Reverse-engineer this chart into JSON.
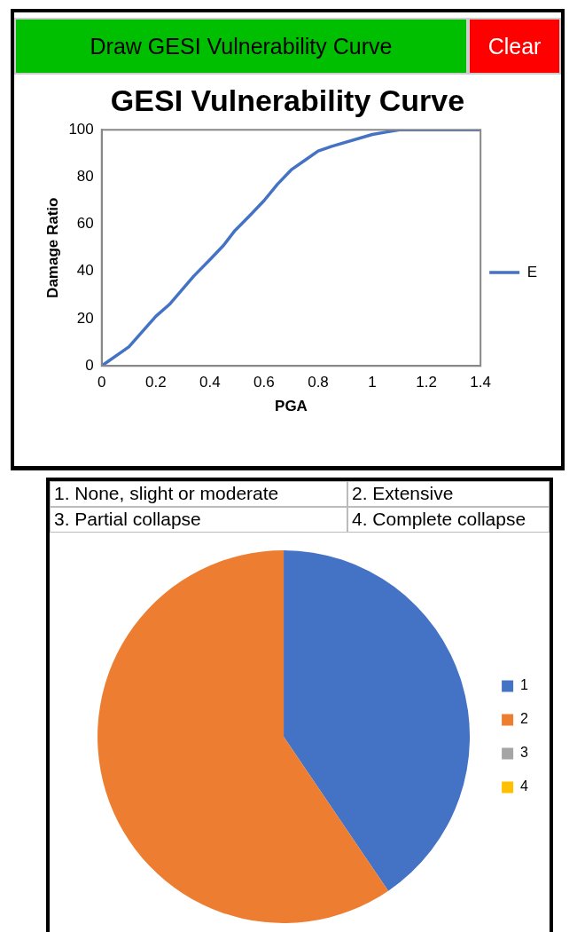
{
  "chart_data": [
    {
      "type": "line",
      "title": "GESI Vulnerability Curve",
      "xlabel": "PGA",
      "ylabel": "Damage Ratio",
      "annotations": [
        "Draw GESI Vulnerability Curve",
        "Clear"
      ],
      "series": [
        {
          "name": "E",
          "color": "#4472c4",
          "x": [
            0,
            0.1,
            0.2,
            0.25,
            0.34,
            0.4,
            0.45,
            0.49,
            0.55,
            0.6,
            0.65,
            0.7,
            0.75,
            0.8,
            0.85,
            1.0,
            1.05,
            1.1,
            1.4
          ],
          "values": [
            0,
            8,
            21,
            26,
            38,
            45,
            51,
            57,
            64,
            70,
            77,
            83,
            87,
            91,
            93,
            98,
            99,
            100,
            100
          ]
        }
      ],
      "xlim": [
        0,
        1.4
      ],
      "xticks": [
        0,
        0.2,
        0.4,
        0.6,
        0.8,
        1,
        1.2,
        1.4
      ],
      "ylim": [
        0,
        100
      ],
      "yticks": [
        0,
        20,
        40,
        60,
        80,
        100
      ],
      "grid": false,
      "legend": "right",
      "marker": "none",
      "line_style": "solid"
    },
    {
      "type": "pie",
      "categories": [
        "1",
        "2",
        "3",
        "4"
      ],
      "values": [
        40.5,
        59.5,
        0,
        0
      ],
      "colors": [
        "#4472c4",
        "#ed7d31",
        "#a5a5a5",
        "#ffc000"
      ],
      "annotations": [
        "1. None, slight or moderate",
        "2. Extensive",
        "3. Partial collapse",
        "4. Complete collapse"
      ],
      "legend": "right"
    }
  ]
}
